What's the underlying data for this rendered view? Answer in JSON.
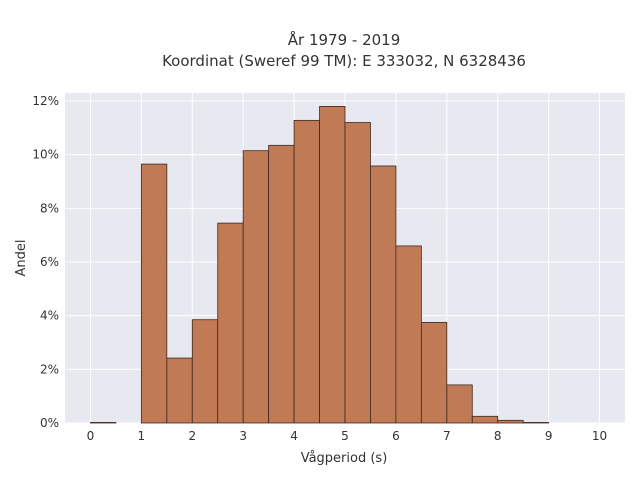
{
  "chart_data": {
    "type": "bar",
    "title_line1": "År 1979 - 2019",
    "title_line2": "Koordinat (Sweref 99 TM): E 333032, N 6328436",
    "xlabel": "Vågperiod (s)",
    "ylabel": "Andel",
    "xlim": [
      -0.5,
      10.5
    ],
    "ylim": [
      0,
      12.3
    ],
    "x_ticks": [
      0,
      1,
      2,
      3,
      4,
      5,
      6,
      7,
      8,
      9,
      10
    ],
    "x_tick_labels": [
      "0",
      "1",
      "2",
      "3",
      "4",
      "5",
      "6",
      "7",
      "8",
      "9",
      "10"
    ],
    "y_ticks": [
      0,
      2,
      4,
      6,
      8,
      10,
      12
    ],
    "y_tick_labels": [
      "0%",
      "2%",
      "4%",
      "6%",
      "8%",
      "10%",
      "12%"
    ],
    "bin_width": 0.5,
    "bin_starts": [
      0,
      0.5,
      1,
      1.5,
      2,
      2.5,
      3,
      3.5,
      4,
      4.5,
      5,
      5.5,
      6,
      6.5,
      7,
      7.5,
      8,
      8.5,
      9,
      9.5
    ],
    "values": [
      0.02,
      0,
      9.65,
      2.42,
      3.85,
      7.45,
      10.15,
      10.35,
      11.28,
      11.8,
      11.2,
      9.58,
      6.6,
      3.75,
      1.42,
      0.25,
      0.1,
      0.02,
      0,
      0
    ],
    "bar_color": "#c07a55",
    "bar_edge_color": "#3d2a20",
    "plot_bg_color": "#e8e8f1",
    "grid_color": "#ffffff",
    "grid": true
  }
}
